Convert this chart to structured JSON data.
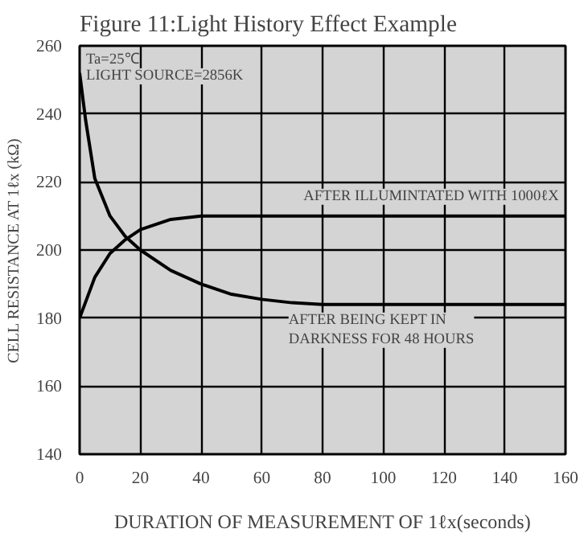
{
  "chart_data": {
    "type": "line",
    "title": "Figure 11:Light History Effect Example",
    "xlabel": "DURATION OF MEASUREMENT OF 1ℓx(seconds)",
    "ylabel": "CELL RESISTANCE AT 1ℓx (kΩ)",
    "xlim": [
      0,
      160
    ],
    "xticks": [
      0,
      20,
      40,
      60,
      80,
      100,
      120,
      140,
      160
    ],
    "ylim": [
      140,
      260
    ],
    "yticks": [
      140,
      160,
      180,
      200,
      220,
      240,
      260
    ],
    "grid": true,
    "marker": "none",
    "line_style": "solid",
    "annotations": [
      "Ta=25℃",
      "LIGHT  SOURCE=2856K"
    ],
    "series": [
      {
        "name": "AFTER ILLUMINTATED WITH 1000ℓX",
        "color": "#000000",
        "x": [
          0,
          5,
          10,
          15,
          20,
          30,
          40,
          160
        ],
        "values": [
          180,
          192,
          199,
          203,
          206,
          209,
          210,
          210
        ]
      },
      {
        "name": "AFTER BEING KEPT IN\nDARKNESS FOR 48 HOURS",
        "color": "#000000",
        "x": [
          0,
          2,
          5,
          10,
          15,
          20,
          30,
          40,
          50,
          60,
          70,
          80,
          160
        ],
        "values": [
          252,
          238,
          221,
          210,
          204,
          200,
          194,
          190,
          187,
          185.5,
          184.5,
          184,
          184
        ]
      }
    ]
  }
}
